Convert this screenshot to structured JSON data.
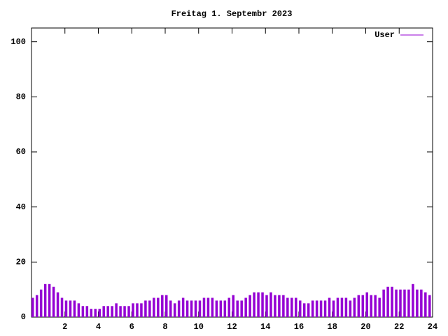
{
  "chart_data": {
    "type": "impulse",
    "title": "Freitag 1. Septembr 2023",
    "x": [
      0,
      0.25,
      0.5,
      0.75,
      1,
      1.25,
      1.5,
      1.75,
      2,
      2.25,
      2.5,
      2.75,
      3,
      3.25,
      3.5,
      3.75,
      4,
      4.25,
      4.5,
      4.75,
      5,
      5.25,
      5.5,
      5.75,
      6,
      6.25,
      6.5,
      6.75,
      7,
      7.25,
      7.5,
      7.75,
      8,
      8.25,
      8.5,
      8.75,
      9,
      9.25,
      9.5,
      9.75,
      10,
      10.25,
      10.5,
      10.75,
      11,
      11.25,
      11.5,
      11.75,
      12,
      12.25,
      12.5,
      12.75,
      13,
      13.25,
      13.5,
      13.75,
      14,
      14.25,
      14.5,
      14.75,
      15,
      15.25,
      15.5,
      15.75,
      16,
      16.25,
      16.5,
      16.75,
      17,
      17.25,
      17.5,
      17.75,
      18,
      18.25,
      18.5,
      18.75,
      19,
      19.25,
      19.5,
      19.75,
      20,
      20.25,
      20.5,
      20.75,
      21,
      21.25,
      21.5,
      21.75,
      22,
      22.25,
      22.5,
      22.75,
      23,
      23.25,
      23.5,
      23.75
    ],
    "series": [
      {
        "name": "User",
        "color": "#9400d3",
        "values": [
          7,
          8,
          10,
          12,
          12,
          11,
          9,
          7,
          6,
          6,
          6,
          5,
          4,
          4,
          3,
          3,
          3,
          4,
          4,
          4,
          5,
          4,
          4,
          4,
          5,
          5,
          5,
          6,
          6,
          7,
          7,
          8,
          8,
          6,
          5,
          6,
          7,
          6,
          6,
          6,
          6,
          7,
          7,
          7,
          6,
          6,
          6,
          7,
          8,
          6,
          6,
          7,
          8,
          9,
          9,
          9,
          8,
          9,
          8,
          8,
          8,
          7,
          7,
          7,
          6,
          5,
          5,
          6,
          6,
          6,
          6,
          7,
          6,
          7,
          7,
          7,
          6,
          7,
          8,
          8,
          9,
          8,
          8,
          7,
          10,
          11,
          11,
          10,
          10,
          10,
          10,
          12,
          10,
          10,
          9,
          8
        ]
      }
    ],
    "xlim": [
      0,
      24
    ],
    "xticks": [
      2,
      4,
      6,
      8,
      10,
      12,
      14,
      16,
      18,
      20,
      22,
      24
    ],
    "ylim": [
      0,
      105
    ],
    "yticks": [
      0,
      20,
      40,
      60,
      80,
      100
    ],
    "legend": "upper right"
  }
}
